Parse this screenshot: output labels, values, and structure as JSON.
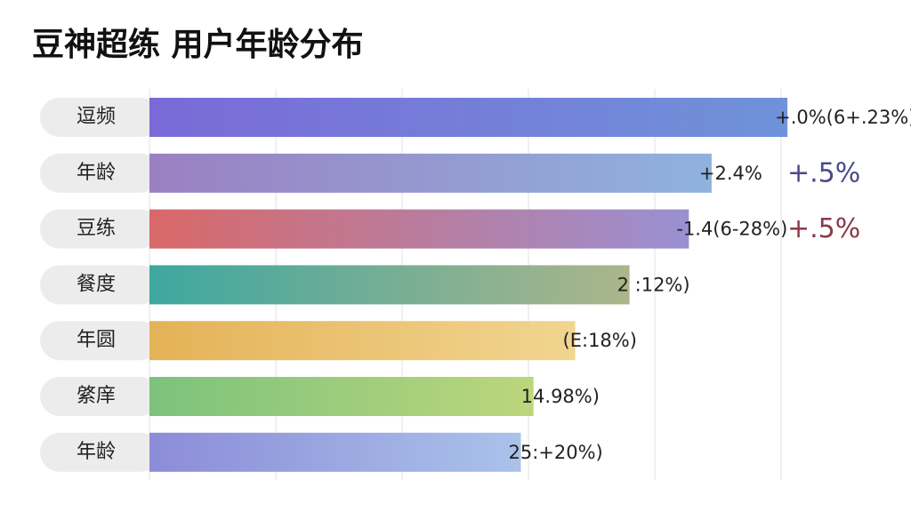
{
  "chart_data": {
    "type": "barh",
    "title": "豆神超练 用户年龄分布",
    "categories": [
      "逗频",
      "年龄",
      "豆练",
      "餐度",
      "年圆",
      "綮庠",
      "年龄"
    ],
    "values": [
      5.05,
      4.45,
      4.27,
      3.8,
      3.37,
      3.04,
      2.94
    ],
    "value_labels": [
      "+.0%(6+.23%)",
      "+2.4%",
      "-1.4(6-28%)",
      "2 :12%)",
      "(E:18%)",
      "14.98%)",
      "25:+20%)"
    ],
    "colors": [
      [
        "#7a6ad8",
        "#6f92d9"
      ],
      [
        "#9a80c2",
        "#8fb2de"
      ],
      [
        "#d96868",
        "#9a90d2"
      ],
      [
        "#3ea7a0",
        "#acb58a"
      ],
      [
        "#e4b257",
        "#f1d590"
      ],
      [
        "#7cc27c",
        "#bcd67c"
      ],
      [
        "#8c8cd8",
        "#aac2ea"
      ]
    ],
    "annotations": [
      {
        "text": "+.5%",
        "row": 1,
        "color": "#4a4a8a"
      },
      {
        "text": "+.5%",
        "row": 2,
        "color": "#8a3a4a"
      }
    ],
    "xlim": [
      0,
      5.9
    ],
    "xticks": [
      0,
      1,
      2,
      3,
      4,
      5
    ],
    "grid": true
  }
}
